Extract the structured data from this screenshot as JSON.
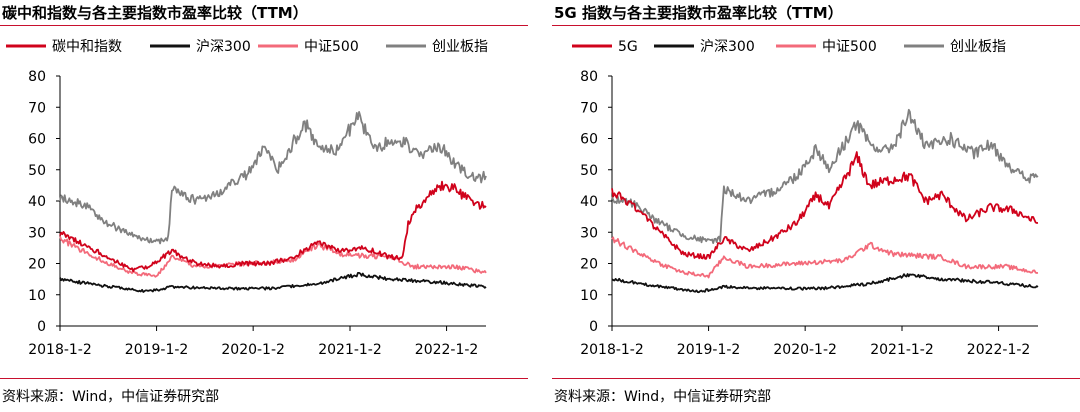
{
  "charts": [
    {
      "title": "碳中和指数与各主要指数市盈率比较（TTM）",
      "source": "资料来源：Wind，中信证券研究部"
    },
    {
      "title": "5G 指数与各主要指数市盈率比较（TTM）",
      "source": "资料来源：Wind，中信证券研究部"
    }
  ],
  "chart_data": [
    {
      "type": "line",
      "title": "碳中和指数与各主要指数市盈率比较（TTM）",
      "ylim": [
        0,
        80
      ],
      "yticks": [
        "0",
        "10",
        "20",
        "30",
        "40",
        "50",
        "60",
        "70",
        "80"
      ],
      "xticks": [
        "2018-1-2",
        "2019-1-2",
        "2020-1-2",
        "2021-1-2",
        "2022-1-2"
      ],
      "xrange": [
        "2018-01-02",
        "2022-05-31"
      ],
      "legend_position": "top",
      "series": [
        {
          "name": "碳中和指数",
          "color": "#d0021b",
          "points": [
            [
              "2018-01-02",
              30
            ],
            [
              "2018-04-01",
              26
            ],
            [
              "2018-07-01",
              22
            ],
            [
              "2018-10-01",
              18
            ],
            [
              "2018-12-01",
              19
            ],
            [
              "2019-03-01",
              24
            ],
            [
              "2019-06-01",
              20
            ],
            [
              "2019-09-01",
              19
            ],
            [
              "2019-12-01",
              20
            ],
            [
              "2020-03-01",
              20
            ],
            [
              "2020-06-01",
              22
            ],
            [
              "2020-09-01",
              27
            ],
            [
              "2020-12-01",
              24
            ],
            [
              "2021-03-01",
              25
            ],
            [
              "2021-06-01",
              22
            ],
            [
              "2021-07-20",
              22
            ],
            [
              "2021-08-10",
              33
            ],
            [
              "2021-09-15",
              38
            ],
            [
              "2021-11-01",
              43
            ],
            [
              "2021-12-20",
              45
            ],
            [
              "2022-02-01",
              44
            ],
            [
              "2022-04-01",
              40
            ],
            [
              "2022-05-31",
              38
            ]
          ]
        },
        {
          "name": "沪深300",
          "color": "#111111",
          "points": [
            [
              "2018-01-02",
              15
            ],
            [
              "2018-06-01",
              13
            ],
            [
              "2018-12-01",
              11
            ],
            [
              "2019-03-01",
              12.5
            ],
            [
              "2019-09-01",
              12
            ],
            [
              "2020-03-01",
              12
            ],
            [
              "2020-09-01",
              13.5
            ],
            [
              "2021-02-01",
              16.5
            ],
            [
              "2021-06-01",
              15
            ],
            [
              "2021-12-01",
              14
            ],
            [
              "2022-05-31",
              12.5
            ]
          ]
        },
        {
          "name": "中证500",
          "color": "#f36a7a",
          "points": [
            [
              "2018-01-02",
              28
            ],
            [
              "2018-04-01",
              24
            ],
            [
              "2018-07-01",
              20
            ],
            [
              "2018-10-01",
              17
            ],
            [
              "2019-01-02",
              16
            ],
            [
              "2019-03-01",
              22
            ],
            [
              "2019-06-01",
              19
            ],
            [
              "2019-12-01",
              20
            ],
            [
              "2020-06-01",
              21
            ],
            [
              "2020-09-01",
              26
            ],
            [
              "2020-12-01",
              23
            ],
            [
              "2021-06-01",
              22
            ],
            [
              "2021-09-01",
              19
            ],
            [
              "2022-02-01",
              19
            ],
            [
              "2022-05-31",
              17
            ]
          ]
        },
        {
          "name": "创业板指",
          "color": "#808080",
          "points": [
            [
              "2018-01-02",
              41
            ],
            [
              "2018-04-01",
              39
            ],
            [
              "2018-07-01",
              33
            ],
            [
              "2018-10-01",
              29
            ],
            [
              "2019-01-02",
              27
            ],
            [
              "2019-02-15",
              28
            ],
            [
              "2019-03-01",
              44
            ],
            [
              "2019-06-01",
              40
            ],
            [
              "2019-09-01",
              43
            ],
            [
              "2019-12-01",
              48
            ],
            [
              "2020-02-15",
              57
            ],
            [
              "2020-04-01",
              50
            ],
            [
              "2020-07-15",
              65
            ],
            [
              "2020-09-01",
              58
            ],
            [
              "2020-11-01",
              56
            ],
            [
              "2020-12-01",
              58
            ],
            [
              "2021-02-01",
              68
            ],
            [
              "2021-04-01",
              57
            ],
            [
              "2021-07-01",
              60
            ],
            [
              "2021-10-01",
              55
            ],
            [
              "2021-12-01",
              58
            ],
            [
              "2022-03-01",
              50
            ],
            [
              "2022-04-20",
              47
            ],
            [
              "2022-05-31",
              48
            ]
          ]
        }
      ]
    },
    {
      "type": "line",
      "title": "5G 指数与各主要指数市盈率比较（TTM）",
      "ylim": [
        0,
        80
      ],
      "yticks": [
        "0",
        "10",
        "20",
        "30",
        "40",
        "50",
        "60",
        "70",
        "80"
      ],
      "xticks": [
        "2018-1-2",
        "2019-1-2",
        "2020-1-2",
        "2021-1-2",
        "2022-1-2"
      ],
      "xrange": [
        "2018-01-02",
        "2022-05-31"
      ],
      "legend_position": "top",
      "series": [
        {
          "name": "5G",
          "color": "#d0021b",
          "points": [
            [
              "2018-01-02",
              43
            ],
            [
              "2018-04-01",
              38
            ],
            [
              "2018-07-01",
              30
            ],
            [
              "2018-10-01",
              23
            ],
            [
              "2019-01-02",
              22
            ],
            [
              "2019-03-01",
              28
            ],
            [
              "2019-06-01",
              24
            ],
            [
              "2019-09-01",
              28
            ],
            [
              "2019-12-01",
              33
            ],
            [
              "2020-02-15",
              42
            ],
            [
              "2020-04-01",
              38
            ],
            [
              "2020-07-15",
              54
            ],
            [
              "2020-09-01",
              45
            ],
            [
              "2020-12-01",
              47
            ],
            [
              "2021-02-01",
              48
            ],
            [
              "2021-04-01",
              40
            ],
            [
              "2021-06-01",
              42
            ],
            [
              "2021-09-01",
              34
            ],
            [
              "2021-12-01",
              38
            ],
            [
              "2022-03-01",
              37
            ],
            [
              "2022-05-31",
              33
            ]
          ]
        },
        {
          "name": "沪深300",
          "color": "#111111",
          "points": [
            [
              "2018-01-02",
              15
            ],
            [
              "2018-06-01",
              13
            ],
            [
              "2018-12-01",
              11
            ],
            [
              "2019-03-01",
              12.5
            ],
            [
              "2019-09-01",
              12
            ],
            [
              "2020-03-01",
              12
            ],
            [
              "2020-09-01",
              13.5
            ],
            [
              "2021-02-01",
              16.5
            ],
            [
              "2021-06-01",
              15
            ],
            [
              "2021-12-01",
              14
            ],
            [
              "2022-05-31",
              12.5
            ]
          ]
        },
        {
          "name": "中证500",
          "color": "#f36a7a",
          "points": [
            [
              "2018-01-02",
              28
            ],
            [
              "2018-04-01",
              24
            ],
            [
              "2018-07-01",
              20
            ],
            [
              "2018-10-01",
              17
            ],
            [
              "2019-01-02",
              16
            ],
            [
              "2019-03-01",
              22
            ],
            [
              "2019-06-01",
              19
            ],
            [
              "2019-12-01",
              20
            ],
            [
              "2020-06-01",
              21
            ],
            [
              "2020-09-01",
              26
            ],
            [
              "2020-12-01",
              23
            ],
            [
              "2021-06-01",
              22
            ],
            [
              "2021-09-01",
              19
            ],
            [
              "2022-02-01",
              19
            ],
            [
              "2022-05-31",
              17
            ]
          ]
        },
        {
          "name": "创业板指",
          "color": "#808080",
          "points": [
            [
              "2018-01-02",
              41
            ],
            [
              "2018-04-01",
              39
            ],
            [
              "2018-07-01",
              33
            ],
            [
              "2018-10-01",
              29
            ],
            [
              "2019-01-02",
              27
            ],
            [
              "2019-02-15",
              28
            ],
            [
              "2019-03-01",
              44
            ],
            [
              "2019-06-01",
              40
            ],
            [
              "2019-09-01",
              43
            ],
            [
              "2019-12-01",
              48
            ],
            [
              "2020-02-15",
              57
            ],
            [
              "2020-04-01",
              50
            ],
            [
              "2020-07-15",
              65
            ],
            [
              "2020-09-01",
              58
            ],
            [
              "2020-11-01",
              56
            ],
            [
              "2020-12-01",
              58
            ],
            [
              "2021-02-01",
              68
            ],
            [
              "2021-04-01",
              57
            ],
            [
              "2021-07-01",
              60
            ],
            [
              "2021-10-01",
              55
            ],
            [
              "2021-12-01",
              58
            ],
            [
              "2022-03-01",
              50
            ],
            [
              "2022-04-20",
              47
            ],
            [
              "2022-05-31",
              48
            ]
          ]
        }
      ]
    }
  ]
}
